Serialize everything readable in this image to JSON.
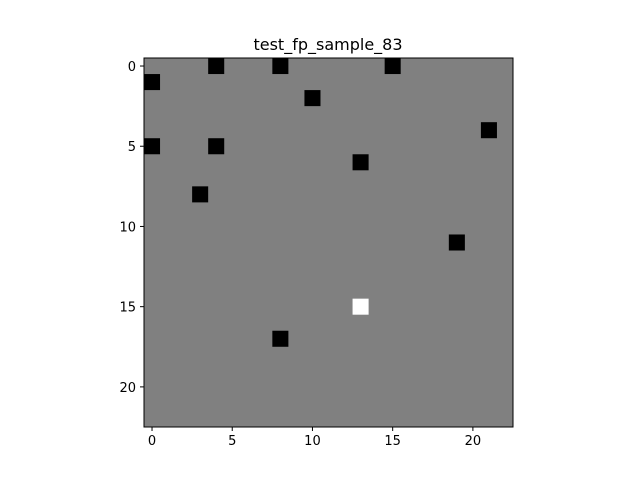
{
  "chart_data": {
    "type": "heatmap",
    "title": "test_fp_sample_83",
    "xlabel": "",
    "ylabel": "",
    "grid_size": [
      23,
      23
    ],
    "xlim": [
      -0.5,
      22.5
    ],
    "ylim": [
      22.5,
      -0.5
    ],
    "y_axis_inverted": true,
    "grid": false,
    "x_ticks": [
      0,
      5,
      10,
      15,
      20
    ],
    "y_ticks": [
      0,
      5,
      10,
      15,
      20
    ],
    "background_value": 0,
    "colors": {
      "background": "#808080",
      "negative": "#000000",
      "positive": "#ffffff"
    },
    "cells": [
      {
        "x": 4,
        "y": 0,
        "value": -1
      },
      {
        "x": 8,
        "y": 0,
        "value": -1
      },
      {
        "x": 15,
        "y": 0,
        "value": -1
      },
      {
        "x": 0,
        "y": 1,
        "value": -1
      },
      {
        "x": 10,
        "y": 2,
        "value": -1
      },
      {
        "x": 21,
        "y": 4,
        "value": -1
      },
      {
        "x": 0,
        "y": 5,
        "value": -1
      },
      {
        "x": 4,
        "y": 5,
        "value": -1
      },
      {
        "x": 13,
        "y": 6,
        "value": -1
      },
      {
        "x": 3,
        "y": 8,
        "value": -1
      },
      {
        "x": 19,
        "y": 11,
        "value": -1
      },
      {
        "x": 13,
        "y": 15,
        "value": 1
      },
      {
        "x": 8,
        "y": 17,
        "value": -1
      }
    ]
  }
}
